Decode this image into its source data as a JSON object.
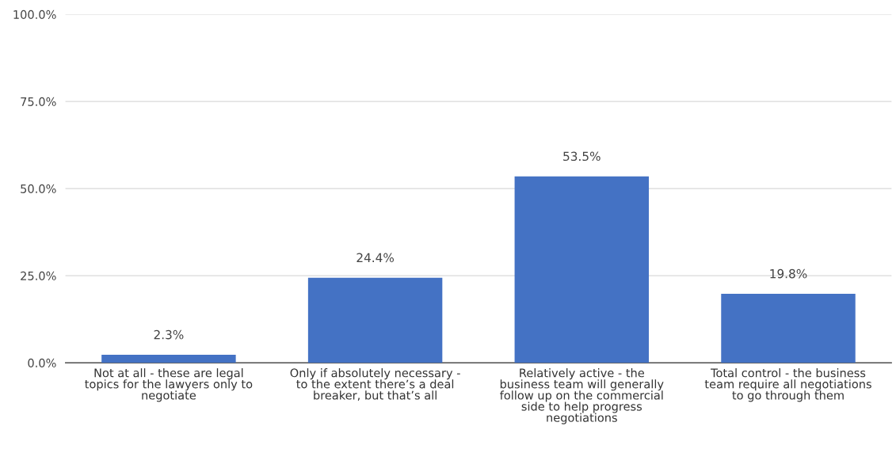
{
  "chart_data": {
    "type": "bar",
    "categories": [
      "Not at all - these are legal\ntopics for the lawyers only to\nnegotiate",
      "Only if absolutely necessary -\nto the extent there’s a deal\nbreaker, but that’s all",
      "Relatively active - the\nbusiness team will generally\nfollow up on the commercial\nside to help progress\nnegotiations",
      "Total control - the business\nteam require all negotiations\nto go through them"
    ],
    "values": [
      2.3,
      24.4,
      53.5,
      19.8
    ],
    "value_labels": [
      "2.3%",
      "24.4%",
      "53.5%",
      "19.8%"
    ],
    "color": "#4472c4",
    "ylim": [
      0,
      100
    ],
    "yticks": [
      {
        "value": 0,
        "label": "0.0%"
      },
      {
        "value": 25,
        "label": "25.0%"
      },
      {
        "value": 50,
        "label": "50.0%"
      },
      {
        "value": 75,
        "label": "75.0%"
      },
      {
        "value": 100,
        "label": "100.0%"
      }
    ],
    "grid": "y"
  }
}
